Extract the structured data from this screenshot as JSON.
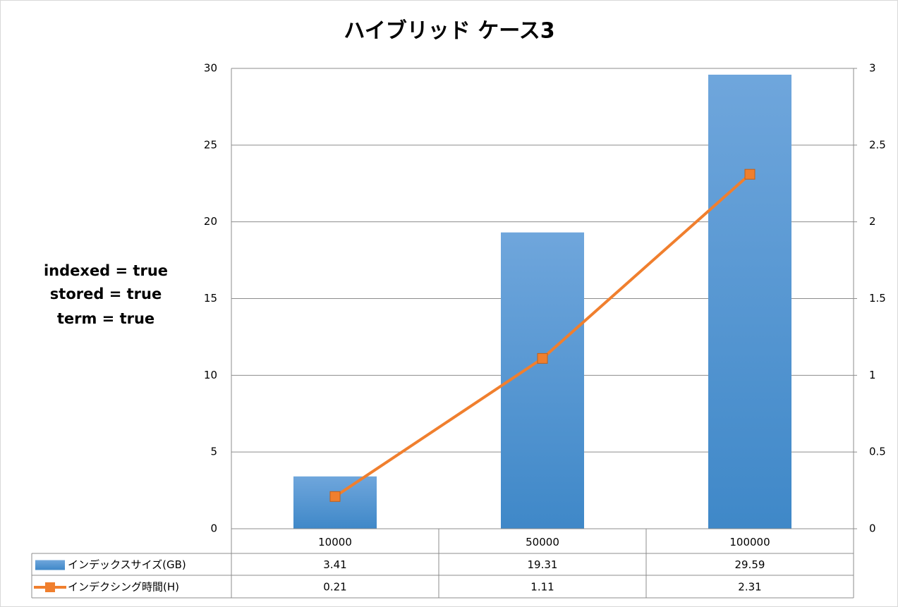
{
  "chart_data": {
    "type": "bar",
    "title": "ハイブリッド ケース3",
    "annotation": [
      "indexed = true",
      "stored = true",
      "term = true"
    ],
    "categories": [
      "10000",
      "50000",
      "100000"
    ],
    "series": [
      {
        "name": "インデックスサイズ(GB)",
        "type": "bar",
        "color": "#5b9bd5",
        "values": [
          3.41,
          19.31,
          29.59
        ]
      },
      {
        "name": "インデクシング時間(H)",
        "type": "line",
        "color": "#f07f2e",
        "axis": "y2",
        "values": [
          0.21,
          1.11,
          2.31
        ]
      }
    ],
    "ylim": [
      0,
      30
    ],
    "yticks": [
      0,
      5,
      10,
      15,
      20,
      25,
      30
    ],
    "y2lim": [
      0,
      3
    ],
    "y2ticks": [
      0,
      0.5,
      1,
      1.5,
      2,
      2.5,
      3
    ],
    "grid": true,
    "data_table": true
  }
}
